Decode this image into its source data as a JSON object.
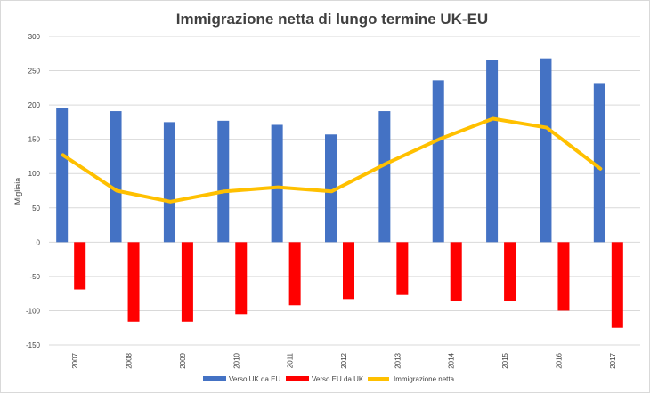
{
  "chart_data": {
    "type": "bar",
    "title": "Immigrazione netta di lungo termine UK-EU",
    "xlabel": "",
    "ylabel": "Migliaia",
    "ylim": [
      -150,
      300
    ],
    "yticks": [
      300,
      250,
      200,
      150,
      100,
      50,
      0,
      -50,
      -100,
      -150
    ],
    "grid": true,
    "legend_position": "bottom",
    "categories": [
      "2007",
      "2008",
      "2009",
      "2010",
      "2011",
      "2012",
      "2013",
      "2014",
      "2015",
      "2016",
      "2017"
    ],
    "series": [
      {
        "name": "Verso UK da EU",
        "type": "bar",
        "color": "#4472c4",
        "values": [
          195,
          191,
          175,
          177,
          171,
          157,
          191,
          236,
          265,
          268,
          232
        ]
      },
      {
        "name": "Verso EU da UK",
        "type": "bar",
        "color": "#ff0000",
        "values": [
          -69,
          -116,
          -116,
          -105,
          -92,
          -83,
          -77,
          -86,
          -86,
          -100,
          -125
        ]
      },
      {
        "name": "Immigrazione netta",
        "type": "line",
        "color": "#ffc000",
        "values": [
          127,
          75,
          59,
          74,
          80,
          74,
          114,
          150,
          180,
          167,
          107
        ]
      }
    ]
  }
}
